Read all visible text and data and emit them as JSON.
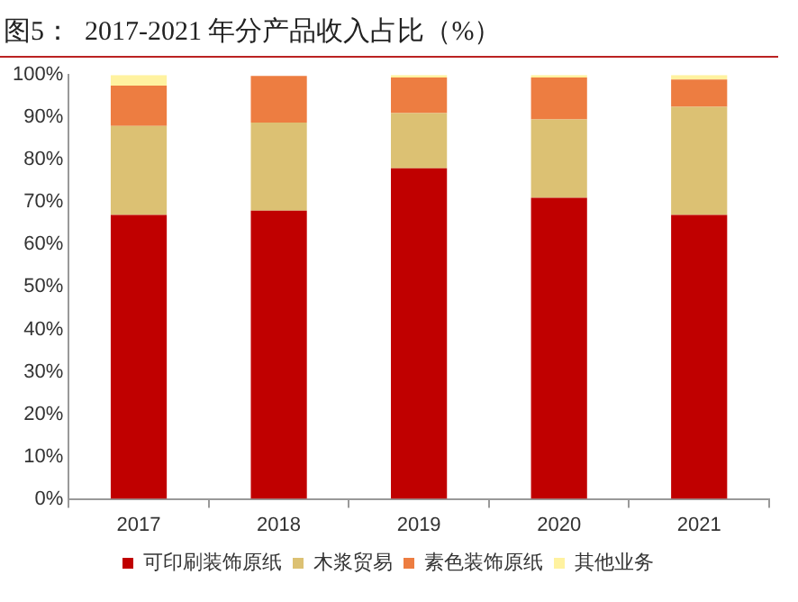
{
  "chart_data": {
    "type": "bar",
    "stacked": true,
    "title": "图5：  2017-2021 年分产品收入占比（%）",
    "categories": [
      "2017",
      "2018",
      "2019",
      "2020",
      "2021"
    ],
    "series": [
      {
        "name": "可印刷装饰原纸",
        "color": "#c00000",
        "values": [
          67,
          68,
          78,
          71,
          67
        ]
      },
      {
        "name": "木浆贸易",
        "color": "#dcc173",
        "values": [
          21,
          20.8,
          13,
          18.5,
          25.5
        ]
      },
      {
        "name": "素色装饰原纸",
        "color": "#ed7d41",
        "values": [
          9.5,
          11,
          8.4,
          9.9,
          6.4
        ]
      },
      {
        "name": "其他业务",
        "color": "#fff2a0",
        "values": [
          2.5,
          null,
          0.6,
          0.6,
          1.1
        ]
      }
    ],
    "ylim": [
      0,
      100
    ],
    "yticks": [
      {
        "value": 0,
        "label": "0%"
      },
      {
        "value": 10,
        "label": "10%"
      },
      {
        "value": 20,
        "label": "20%"
      },
      {
        "value": 30,
        "label": "30%"
      },
      {
        "value": 40,
        "label": "40%"
      },
      {
        "value": 50,
        "label": "50%"
      },
      {
        "value": 60,
        "label": "60%"
      },
      {
        "value": 70,
        "label": "70%"
      },
      {
        "value": 80,
        "label": "80%"
      },
      {
        "value": 90,
        "label": "90%"
      },
      {
        "value": 100,
        "label": "100%"
      }
    ],
    "grid": false,
    "legend": "bottom"
  }
}
